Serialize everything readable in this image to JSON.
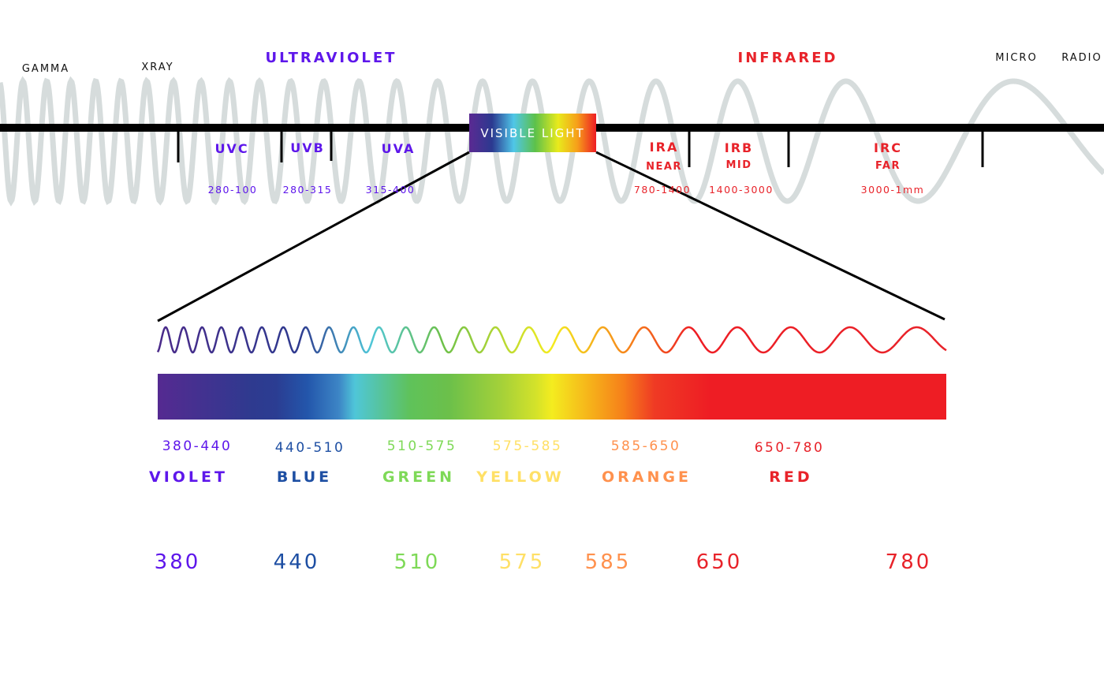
{
  "bands": {
    "gamma": "GAMMA",
    "xray": "XRAY",
    "ultraviolet": "ULTRAVIOLET",
    "infrared": "INFRARED",
    "micro": "MICRO",
    "radio": "RADIO",
    "visible": "VISIBLE LIGHT"
  },
  "uv_sub": [
    {
      "name": "UVC",
      "range": "280-100"
    },
    {
      "name": "UVB",
      "range": "280-315"
    },
    {
      "name": "UVA",
      "range": "315-400"
    }
  ],
  "ir_sub": [
    {
      "name": "IRA",
      "qualifier": "NEAR",
      "range": "780-1400"
    },
    {
      "name": "IRB",
      "qualifier": "MID",
      "range": "1400-3000"
    },
    {
      "name": "IRC",
      "qualifier": "FAR",
      "range": "3000-1mm"
    }
  ],
  "visible_colors": [
    {
      "name": "VIOLET",
      "range": "380-440",
      "color": "#5e17eb"
    },
    {
      "name": "BLUE",
      "range": "440-510",
      "color": "#1e4fa3"
    },
    {
      "name": "GREEN",
      "range": "510-575",
      "color": "#7ed957"
    },
    {
      "name": "YELLOW",
      "range": "575-585",
      "color": "#ffe066"
    },
    {
      "name": "ORANGE",
      "range": "585-650",
      "color": "#ff914d"
    },
    {
      "name": "RED",
      "range": "650-780",
      "color": "#e8232a"
    }
  ],
  "wavelength_scale": [
    {
      "value": "380",
      "color": "#5e17eb"
    },
    {
      "value": "440",
      "color": "#1e4fa3"
    },
    {
      "value": "510",
      "color": "#7ed957"
    },
    {
      "value": "575",
      "color": "#ffe066"
    },
    {
      "value": "585",
      "color": "#ff914d"
    },
    {
      "value": "650",
      "color": "#e8232a"
    },
    {
      "value": "780",
      "color": "#e8232a"
    }
  ],
  "colors": {
    "uv": "#5e17eb",
    "ir": "#e8232a",
    "wave_gray": "#cfd6d6"
  }
}
